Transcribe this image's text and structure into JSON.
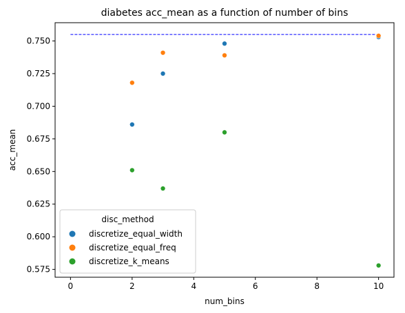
{
  "chart_data": {
    "type": "scatter",
    "title": "diabetes acc_mean as a function of number of bins",
    "xlabel": "num_bins",
    "ylabel": "acc_mean",
    "xlim": [
      -0.5,
      10.5
    ],
    "ylim": [
      0.569,
      0.764
    ],
    "xticks": [
      0,
      2,
      4,
      6,
      8,
      10
    ],
    "xtick_labels": [
      "0",
      "2",
      "4",
      "6",
      "8",
      "10"
    ],
    "yticks": [
      0.575,
      0.6,
      0.625,
      0.65,
      0.675,
      0.7,
      0.725,
      0.75
    ],
    "ytick_labels": [
      "0.575",
      "0.600",
      "0.625",
      "0.650",
      "0.675",
      "0.700",
      "0.725",
      "0.750"
    ],
    "grid": false,
    "legend_title": "disc_method",
    "legend_position": "lower-left",
    "series": [
      {
        "name": "discretize_equal_width",
        "color": "#1f77b4",
        "x": [
          2,
          3,
          5,
          10
        ],
        "y": [
          0.686,
          0.725,
          0.748,
          0.753
        ]
      },
      {
        "name": "discretize_equal_freq",
        "color": "#ff7f0e",
        "x": [
          2,
          3,
          5,
          10
        ],
        "y": [
          0.718,
          0.741,
          0.739,
          0.754
        ]
      },
      {
        "name": "discretize_k_means",
        "color": "#2ca02c",
        "x": [
          2,
          3,
          5,
          10
        ],
        "y": [
          0.651,
          0.637,
          0.68,
          0.578
        ]
      }
    ],
    "reference_line": {
      "x": [
        0,
        10
      ],
      "y": [
        0.755,
        0.755
      ],
      "color": "#0000ff",
      "style": "dashed"
    }
  }
}
